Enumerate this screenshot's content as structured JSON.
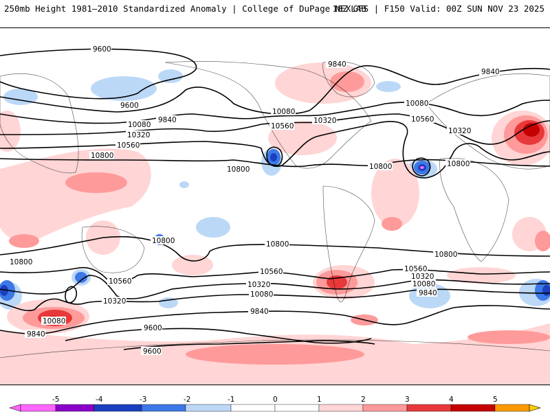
{
  "header": {
    "left_title": "250mb Height 1981–2010 Standardized Anomaly | College of DuPage NEXLAB",
    "right_title": "18Z GFS | F150 Valid: 00Z SUN NOV 23 2025"
  },
  "map": {
    "contour_labels": [
      "9600",
      "9840",
      "10080",
      "10320",
      "10560",
      "10800"
    ],
    "anomaly_palette": {
      "-5": "#ff66ff",
      "-4": "#8a00c8",
      "-3": "#1a3fbf",
      "-2": "#3c78e6",
      "-1": "#bcd8f7",
      "0": "#ffffff",
      "1": "#ffd5d5",
      "2": "#ff9a9a",
      "3": "#e8393a",
      "4": "#c40000",
      "5": "#ff9900"
    }
  },
  "colorbar": {
    "tick_labels": [
      "-5",
      "-4",
      "-3",
      "-2",
      "-1",
      "0",
      "1",
      "2",
      "3",
      "4",
      "5"
    ]
  }
}
